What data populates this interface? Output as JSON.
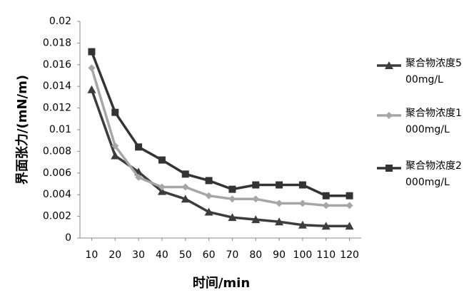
{
  "chart_data": {
    "type": "line",
    "x_label": "时间/min",
    "y_label": "界面张力/(mN/m)",
    "x": [
      10,
      20,
      30,
      40,
      50,
      60,
      70,
      80,
      90,
      100,
      110,
      120
    ],
    "xlim": [
      5,
      125
    ],
    "xticks": [
      10,
      20,
      30,
      40,
      50,
      60,
      70,
      80,
      90,
      100,
      110,
      120
    ],
    "ylim": [
      0,
      0.02
    ],
    "yticks": [
      0,
      0.002,
      0.004,
      0.006,
      0.008,
      0.01,
      0.012,
      0.014,
      0.016,
      0.018,
      0.02
    ],
    "legend": "right",
    "series": [
      {
        "name": "聚合物浓度500mg/L",
        "color": "#3c3c3c",
        "marker": "triangle",
        "values": [
          0.0137,
          0.0076,
          0.0061,
          0.0043,
          0.0036,
          0.0024,
          0.0019,
          0.0017,
          0.0015,
          0.0012,
          0.0011,
          0.0011
        ]
      },
      {
        "name": "聚合物浓度1000mg/L",
        "color": "#a6a6a6",
        "marker": "diamond",
        "values": [
          0.0157,
          0.0085,
          0.0056,
          0.0047,
          0.0047,
          0.0039,
          0.0036,
          0.0036,
          0.0032,
          0.0032,
          0.003,
          0.003
        ]
      },
      {
        "name": "聚合物浓度2000mg/L",
        "color": "#333333",
        "marker": "square",
        "values": [
          0.0172,
          0.0116,
          0.0084,
          0.0072,
          0.0059,
          0.0053,
          0.0045,
          0.0049,
          0.0049,
          0.0049,
          0.0039,
          0.0039
        ]
      }
    ]
  }
}
